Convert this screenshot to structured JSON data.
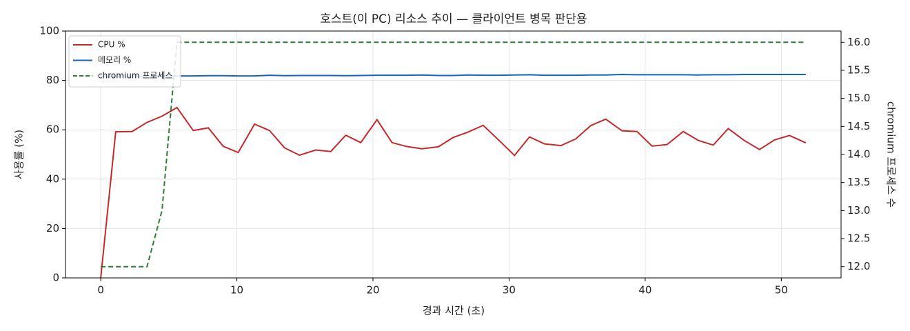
{
  "chart_data": {
    "type": "line",
    "title": "호스트(이 PC) 리소스 추이 — 클라이언트 병목 판단용",
    "xlabel": "경과 시간 (초)",
    "ylabel": "사용률 (%)",
    "y2label": "chromium 프로세스 수",
    "x": [
      0,
      1.1,
      2.3,
      3.4,
      4.5,
      5.6,
      6.8,
      7.9,
      9.0,
      10.1,
      11.3,
      12.4,
      13.5,
      14.6,
      15.8,
      16.9,
      18.0,
      19.1,
      20.3,
      21.4,
      22.5,
      23.6,
      24.8,
      25.9,
      27.0,
      28.1,
      29.3,
      30.4,
      31.5,
      32.6,
      33.8,
      34.9,
      36.0,
      37.1,
      38.3,
      39.4,
      40.5,
      41.6,
      42.8,
      43.9,
      45.0,
      46.1,
      47.3,
      48.4,
      49.5,
      50.6,
      51.8
    ],
    "series": [
      {
        "name": "CPU %",
        "color": "#c62828",
        "values": [
          0,
          59.2,
          59.3,
          63,
          65.5,
          69,
          59.7,
          60.8,
          53.3,
          50.8,
          62.3,
          59.7,
          52.7,
          49.7,
          51.8,
          51.2,
          57.8,
          54.8,
          64.1,
          54.8,
          53.2,
          52.3,
          53.1,
          56.9,
          59.1,
          61.8,
          55.5,
          49.6,
          57.1,
          54.3,
          53.6,
          56.3,
          61.7,
          64.3,
          59.6,
          59.3,
          53.4,
          54.0,
          59.3,
          55.7,
          53.8,
          60.5,
          55.6,
          52.0,
          55.9,
          57.7,
          54.7
        ]
      },
      {
        "name": "메모리 %",
        "color": "#1565c0",
        "values": [
          81.5,
          81.6,
          81.7,
          81.7,
          81.8,
          81.8,
          81.8,
          81.9,
          81.9,
          81.8,
          81.8,
          82.1,
          81.9,
          82.0,
          82.0,
          82.0,
          81.9,
          82.0,
          82.1,
          82.1,
          82.1,
          82.2,
          82.0,
          82.0,
          82.2,
          82.1,
          82.1,
          82.2,
          82.3,
          82.1,
          82.1,
          82.1,
          82.2,
          82.2,
          82.4,
          82.3,
          82.3,
          82.3,
          82.3,
          82.2,
          82.3,
          82.3,
          82.4,
          82.4,
          82.4,
          82.4,
          82.4
        ]
      },
      {
        "name": "chromium 프로세스",
        "color": "#2e7d32",
        "axis": "y2",
        "dashed": true,
        "values": [
          12,
          12,
          12,
          12,
          13,
          16,
          16,
          16,
          16,
          16,
          16,
          16,
          16,
          16,
          16,
          16,
          16,
          16,
          16,
          16,
          16,
          16,
          16,
          16,
          16,
          16,
          16,
          16,
          16,
          16,
          16,
          16,
          16,
          16,
          16,
          16,
          16,
          16,
          16,
          16,
          16,
          16,
          16,
          16,
          16,
          16,
          16
        ]
      }
    ],
    "xlim": [
      -2.59,
      54.39
    ],
    "xticks": [
      0,
      10,
      20,
      30,
      40,
      50
    ],
    "ylim": [
      0,
      100
    ],
    "yticks": [
      0,
      20,
      40,
      60,
      80,
      100
    ],
    "y2lim": [
      11.8,
      16.2
    ],
    "y2ticks": [
      {
        "value": 12,
        "label": "12.0"
      },
      12.5,
      {
        "value": 13,
        "label": "13.0"
      },
      13.5,
      {
        "value": 14,
        "label": "14.0"
      },
      14.5,
      {
        "value": 15,
        "label": "15.0"
      },
      15.5,
      {
        "value": 16,
        "label": "16.0"
      }
    ],
    "grid": true,
    "legend": "upper left"
  }
}
